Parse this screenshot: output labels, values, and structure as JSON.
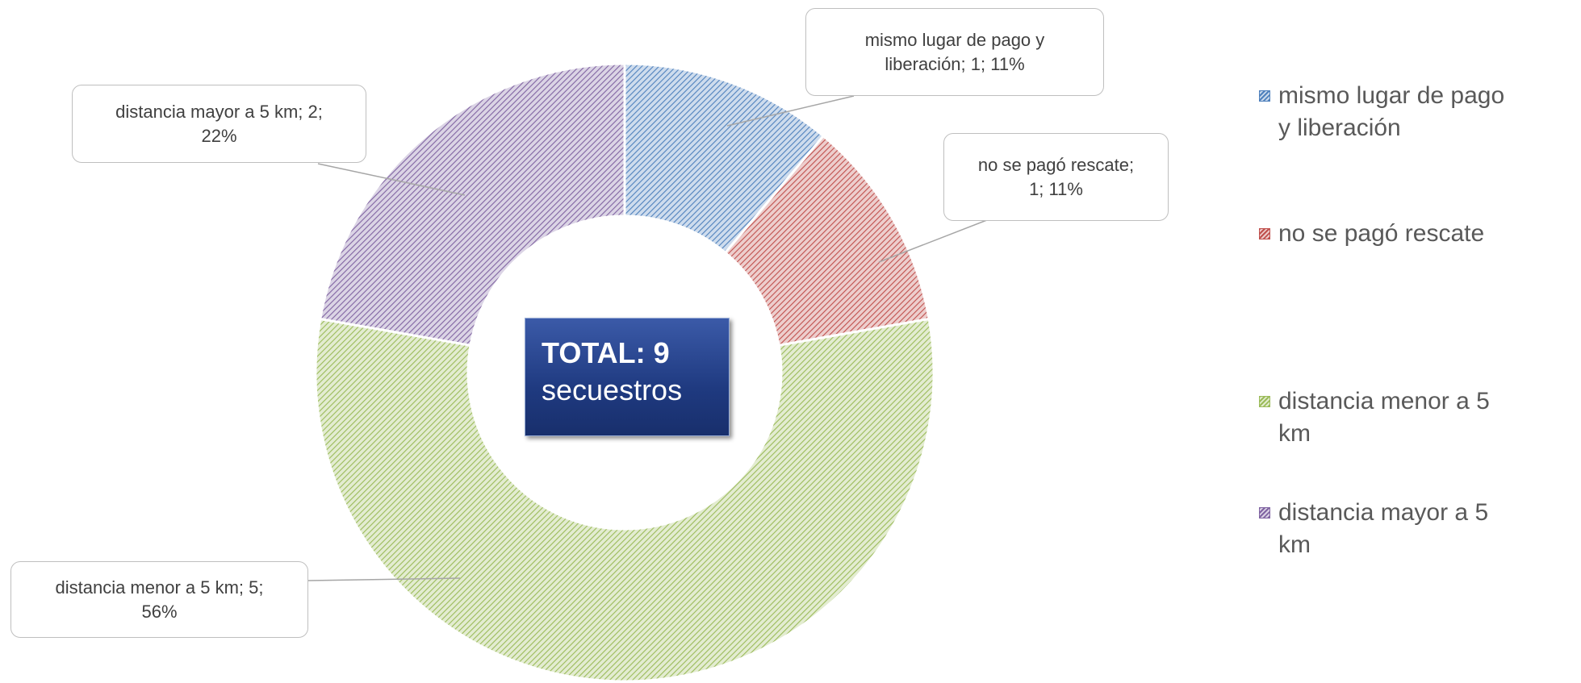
{
  "chart_data": {
    "type": "pie",
    "center_label": {
      "title": "TOTAL: 9",
      "subtitle": "secuestros"
    },
    "categories": [
      "mismo lugar de pago y liberación",
      "no se pagó rescate",
      "distancia menor a 5 km",
      "distancia mayor a 5 km"
    ],
    "values": [
      1,
      1,
      5,
      2
    ],
    "value_labels": [
      "mismo lugar de pago y liberación; 1; 11%",
      "no se pagó rescate; 1; 11%",
      "distancia menor a 5 km; 5; 56%",
      "distancia mayor a 5 km; 2; 22%"
    ],
    "colors": [
      "#4f81bd",
      "#c0504d",
      "#9bbb59",
      "#8064a2"
    ],
    "donut": true,
    "legend": "right"
  }
}
